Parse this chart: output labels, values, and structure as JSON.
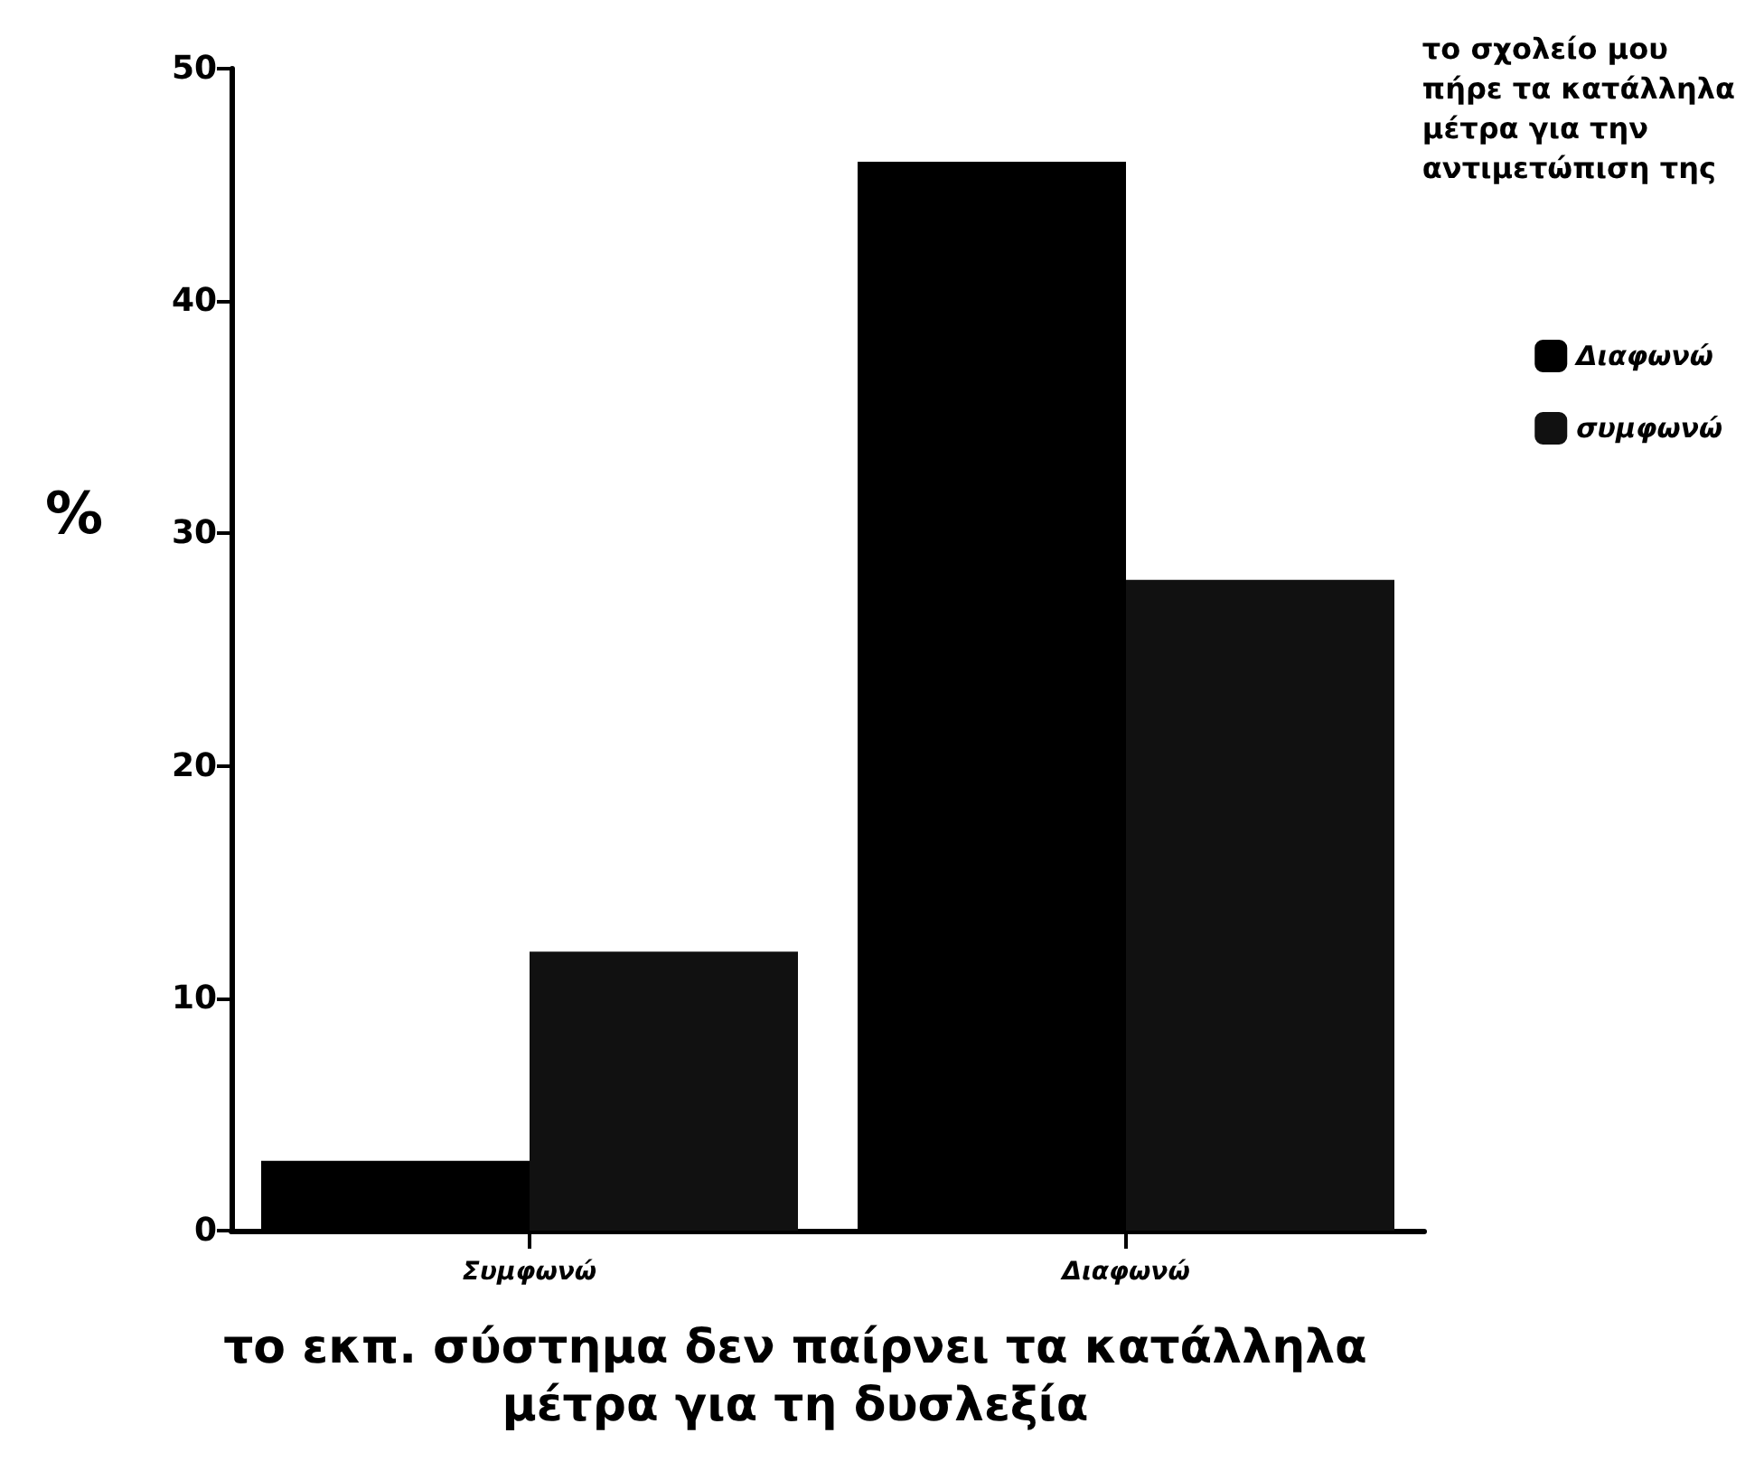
{
  "chart_data": {
    "type": "bar",
    "xlabel": "το εκπ. σύστημα δεν παίρνει τα κατάλληλα\nμέτρα για τη δυσλεξία",
    "ylabel": "%",
    "legend_title": "το σχολείο μου\nπήρε τα κατάλληλα\nμέτρα για την\nαντιμετώπιση της",
    "categories": [
      "Συμφωνώ",
      "Διαφωνώ"
    ],
    "series": [
      {
        "name": "Διαφωνώ",
        "color": "#000000",
        "values": [
          3,
          46
        ]
      },
      {
        "name": "συμφωνώ",
        "color": "#111111",
        "values": [
          12,
          28
        ]
      }
    ],
    "ylim": [
      0,
      50
    ],
    "yticks": [
      0,
      10,
      20,
      30,
      40,
      50
    ],
    "grid": false,
    "legend": "top right"
  }
}
